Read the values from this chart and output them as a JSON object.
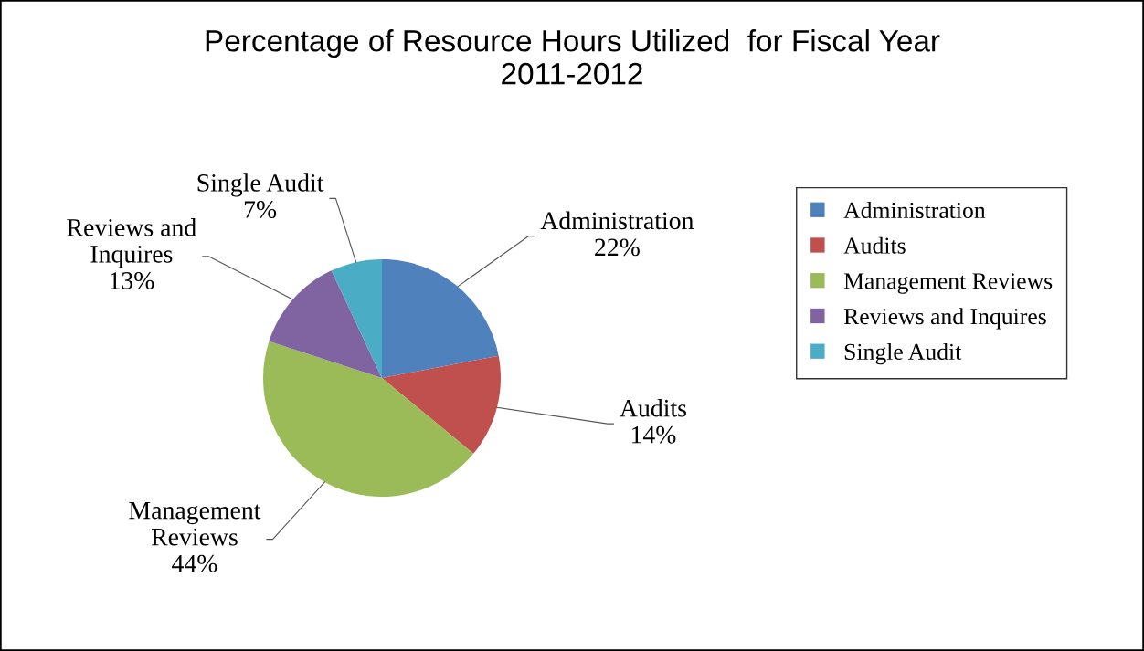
{
  "chart_data": {
    "type": "pie",
    "title": "Percentage of Resource Hours Utilized  for Fiscal Year\n2011-2012",
    "categories": [
      "Administration",
      "Audits",
      "Management Reviews",
      "Reviews and Inquires",
      "Single Audit"
    ],
    "values": [
      22,
      14,
      44,
      13,
      7
    ],
    "value_labels": [
      "22%",
      "14%",
      "44%",
      "13%",
      "7%"
    ],
    "colors": [
      "#4f81bd",
      "#c0504d",
      "#9bbb59",
      "#8064a2",
      "#4bacc6"
    ],
    "legend": "right"
  }
}
